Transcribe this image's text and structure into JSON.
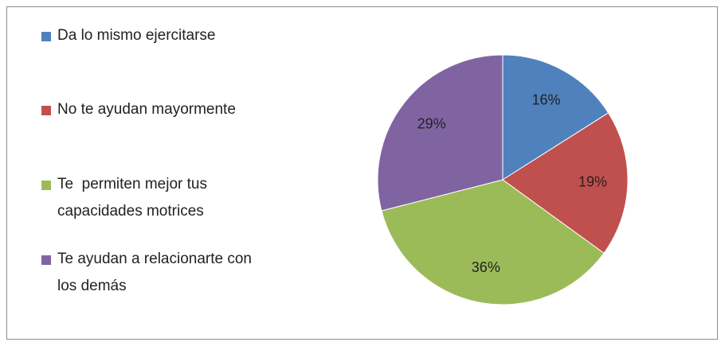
{
  "chart_data": {
    "type": "pie",
    "categories": [
      "Da lo mismo ejercitarse",
      "No te ayudan mayormente",
      "Te  permiten mejor tus capacidades motrices",
      "Te ayudan a relacionarte con los demás"
    ],
    "values": [
      16,
      19,
      36,
      29
    ],
    "value_labels": [
      "16%",
      "19%",
      "36%",
      "29%"
    ],
    "colors": [
      "#4f81bd",
      "#c0504d",
      "#9bbb59",
      "#8064a2"
    ],
    "legend": "left"
  }
}
